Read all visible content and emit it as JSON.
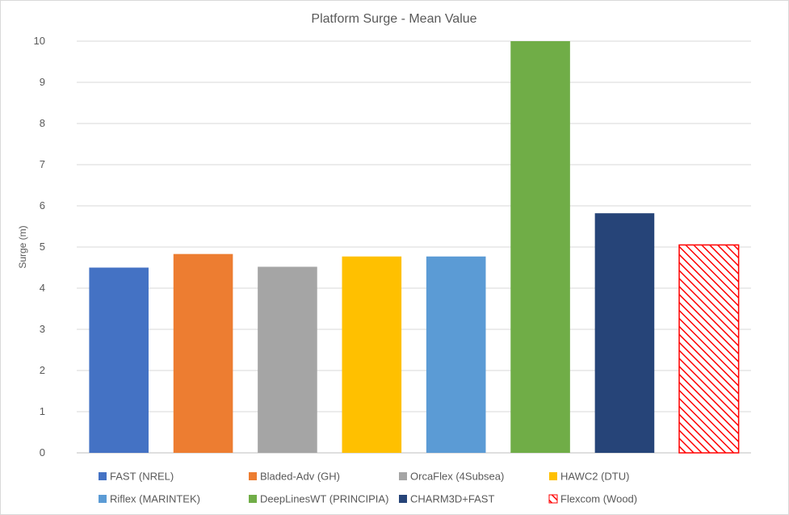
{
  "chart_data": {
    "type": "bar",
    "title": "Platform Surge - Mean Value",
    "xlabel": "",
    "ylabel": "Surge (m)",
    "ylim": [
      0,
      10
    ],
    "yticks": [
      0,
      1,
      2,
      3,
      4,
      5,
      6,
      7,
      8,
      9,
      10
    ],
    "grid": true,
    "legend_position": "bottom",
    "series": [
      {
        "name": "FAST (NREL)",
        "value": 4.5,
        "color": "#4472C4",
        "pattern": "solid"
      },
      {
        "name": "Bladed-Adv (GH)",
        "value": 4.83,
        "color": "#ED7D31",
        "pattern": "solid"
      },
      {
        "name": "OrcaFlex (4Subsea)",
        "value": 4.52,
        "color": "#A5A5A5",
        "pattern": "solid"
      },
      {
        "name": "HAWC2 (DTU)",
        "value": 4.77,
        "color": "#FFC000",
        "pattern": "solid"
      },
      {
        "name": "Riflex (MARINTEK)",
        "value": 4.77,
        "color": "#5B9BD5",
        "pattern": "solid"
      },
      {
        "name": "DeepLinesWT (PRINCIPIA)",
        "value": 10.0,
        "color": "#70AD47",
        "pattern": "solid"
      },
      {
        "name": "CHARM3D+FAST",
        "value": 5.82,
        "color": "#264478",
        "pattern": "solid"
      },
      {
        "name": "Flexcom (Wood)",
        "value": 5.05,
        "color": "#FF0000",
        "pattern": "hatch"
      }
    ]
  }
}
